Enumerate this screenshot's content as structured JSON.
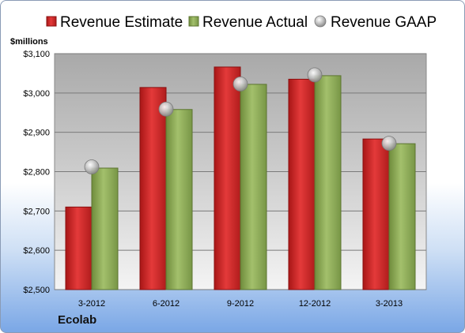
{
  "company": "Ecolab",
  "chart_data": {
    "type": "bar",
    "title": "",
    "xlabel": "",
    "ylabel": "$millions",
    "categories": [
      "3-2012",
      "6-2012",
      "9-2012",
      "12-2012",
      "3-2013"
    ],
    "series": [
      {
        "name": "Revenue Estimate",
        "kind": "bar",
        "color": "#d42a2a",
        "values": [
          2710,
          3014,
          3066,
          3035,
          2883
        ]
      },
      {
        "name": "Revenue Actual",
        "kind": "bar",
        "color": "#8fae5a",
        "values": [
          2809,
          2958,
          3022,
          3044,
          2871
        ]
      },
      {
        "name": "Revenue GAAP",
        "kind": "marker",
        "color": "#b0b0b0",
        "values": [
          2812,
          2959,
          3023,
          3046,
          2872
        ]
      }
    ],
    "ylim": [
      2500,
      3100
    ],
    "yticks": [
      2500,
      2600,
      2700,
      2800,
      2900,
      3000,
      3100
    ],
    "ytick_labels": [
      "$2,500",
      "$2,600",
      "$2,700",
      "$2,800",
      "$2,900",
      "$3,000",
      "$3,100"
    ],
    "grid": true,
    "legend_position": "top"
  }
}
